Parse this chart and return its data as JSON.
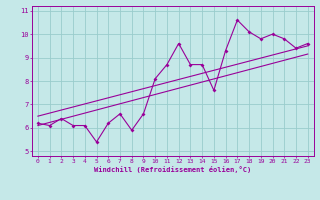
{
  "xlabel": "Windchill (Refroidissement éolien,°C)",
  "xlim": [
    -0.5,
    23.5
  ],
  "ylim": [
    4.8,
    11.2
  ],
  "yticks": [
    5,
    6,
    7,
    8,
    9,
    10,
    11
  ],
  "xticks": [
    0,
    1,
    2,
    3,
    4,
    5,
    6,
    7,
    8,
    9,
    10,
    11,
    12,
    13,
    14,
    15,
    16,
    17,
    18,
    19,
    20,
    21,
    22,
    23
  ],
  "bg_color": "#c5e8e8",
  "line_color": "#990099",
  "grid_color": "#99cccc",
  "data_x": [
    0,
    1,
    2,
    3,
    4,
    5,
    6,
    7,
    8,
    9,
    10,
    11,
    12,
    13,
    14,
    15,
    16,
    17,
    18,
    19,
    20,
    21,
    22,
    23
  ],
  "data_y": [
    6.2,
    6.1,
    6.4,
    6.1,
    6.1,
    5.4,
    6.2,
    6.6,
    5.9,
    6.6,
    8.1,
    8.7,
    9.6,
    8.7,
    8.7,
    7.6,
    9.3,
    10.6,
    10.1,
    9.8,
    10.0,
    9.8,
    9.4,
    9.6
  ],
  "trend1_x": [
    0,
    23
  ],
  "trend1_y": [
    6.5,
    9.5
  ],
  "trend2_x": [
    0,
    23
  ],
  "trend2_y": [
    6.1,
    9.15
  ]
}
